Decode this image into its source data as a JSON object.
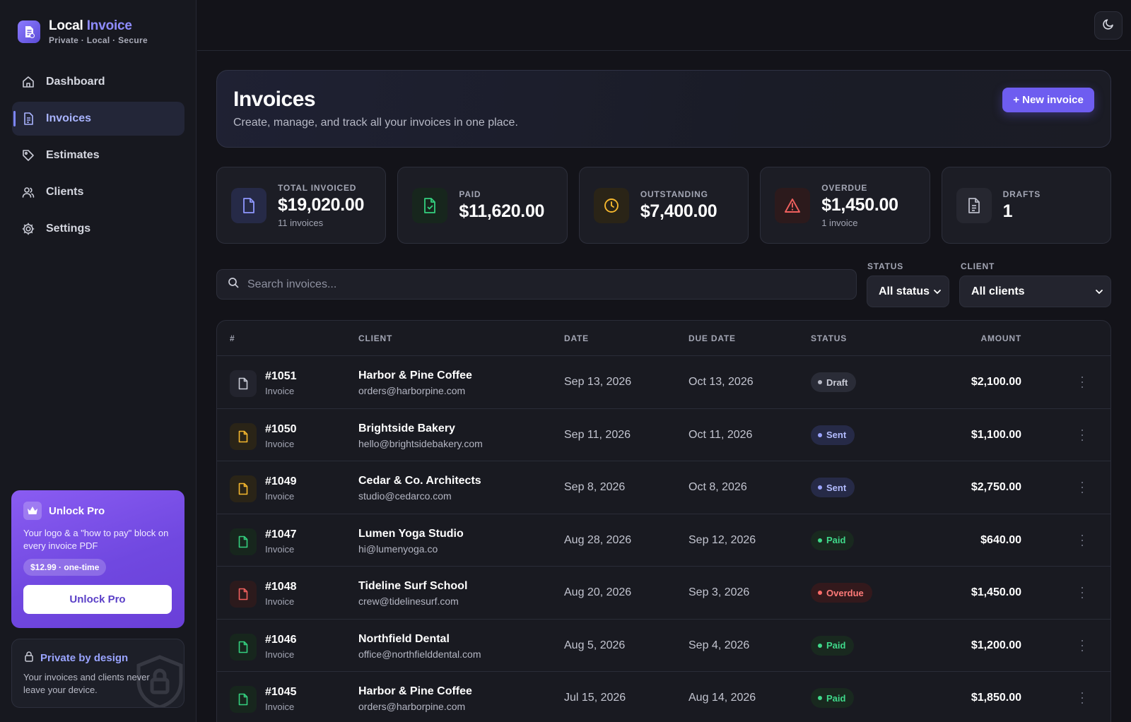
{
  "brand": {
    "name_part1": "Local",
    "name_part2": "Invoice",
    "tagline": "Private · Local · Secure"
  },
  "nav": [
    {
      "label": "Dashboard",
      "icon": "home-icon"
    },
    {
      "label": "Invoices",
      "icon": "invoice-doc-icon",
      "active": true
    },
    {
      "label": "Estimates",
      "icon": "tag-icon"
    },
    {
      "label": "Clients",
      "icon": "users-icon"
    },
    {
      "label": "Settings",
      "icon": "gear-icon"
    }
  ],
  "pro": {
    "title": "Unlock Pro",
    "description": "Your logo & a \"how to pay\" block on every invoice PDF",
    "price": "$12.99 · one-time",
    "button": "Unlock Pro",
    "icon": "crown-icon"
  },
  "privacy": {
    "title": "Private by design",
    "description": "Your invoices and clients never leave your device.",
    "icon": "lock-icon"
  },
  "topbar": {
    "theme_icon": "moon-icon"
  },
  "header": {
    "title": "Invoices",
    "subtitle": "Create, manage, and track all your invoices in one place.",
    "new_button": "+ New invoice"
  },
  "stats": [
    {
      "label": "TOTAL INVOICED",
      "value": "$19,020.00",
      "note": "11 invoices",
      "icon": "document-icon",
      "color": "#8f98ff"
    },
    {
      "label": "PAID",
      "value": "$11,620.00",
      "note": "",
      "icon": "document-check-icon",
      "color": "#34d07f"
    },
    {
      "label": "OUTSTANDING",
      "value": "$7,400.00",
      "note": "",
      "icon": "clock-icon",
      "color": "#f5b72e"
    },
    {
      "label": "OVERDUE",
      "value": "$1,450.00",
      "note": "1 invoice",
      "icon": "alert-triangle-icon",
      "color": "#f0605e"
    },
    {
      "label": "DRAFTS",
      "value": "1",
      "note": "",
      "icon": "document-lines-icon",
      "color": "#b8bac6"
    }
  ],
  "filters": {
    "search_placeholder": "Search invoices...",
    "status_label": "STATUS",
    "status_value": "All status",
    "client_label": "CLIENT",
    "client_value": "All clients"
  },
  "table": {
    "columns": [
      "#",
      "CLIENT",
      "DATE",
      "DUE DATE",
      "STATUS",
      "AMOUNT"
    ],
    "rows": [
      {
        "number": "#1051",
        "type": "Invoice",
        "client": "Harbor & Pine Coffee",
        "email": "orders@harborpine.com",
        "date": "Sep 13, 2026",
        "due": "Oct 13, 2026",
        "status": "Draft",
        "amount": "$2,100.00"
      },
      {
        "number": "#1050",
        "type": "Invoice",
        "client": "Brightside Bakery",
        "email": "hello@brightsidebakery.com",
        "date": "Sep 11, 2026",
        "due": "Oct 11, 2026",
        "status": "Sent",
        "amount": "$1,100.00"
      },
      {
        "number": "#1049",
        "type": "Invoice",
        "client": "Cedar & Co. Architects",
        "email": "studio@cedarco.com",
        "date": "Sep 8, 2026",
        "due": "Oct 8, 2026",
        "status": "Sent",
        "amount": "$2,750.00"
      },
      {
        "number": "#1047",
        "type": "Invoice",
        "client": "Lumen Yoga Studio",
        "email": "hi@lumenyoga.co",
        "date": "Aug 28, 2026",
        "due": "Sep 12, 2026",
        "status": "Paid",
        "amount": "$640.00"
      },
      {
        "number": "#1048",
        "type": "Invoice",
        "client": "Tideline Surf School",
        "email": "crew@tidelinesurf.com",
        "date": "Aug 20, 2026",
        "due": "Sep 3, 2026",
        "status": "Overdue",
        "amount": "$1,450.00"
      },
      {
        "number": "#1046",
        "type": "Invoice",
        "client": "Northfield Dental",
        "email": "office@northfielddental.com",
        "date": "Aug 5, 2026",
        "due": "Sep 4, 2026",
        "status": "Paid",
        "amount": "$1,200.00"
      },
      {
        "number": "#1045",
        "type": "Invoice",
        "client": "Harbor & Pine Coffee",
        "email": "orders@harborpine.com",
        "date": "Jul 15, 2026",
        "due": "Aug 14, 2026",
        "status": "Paid",
        "amount": "$1,850.00"
      }
    ]
  },
  "status_colors": {
    "Draft": {
      "text": "#c9cbd6",
      "bg": "#2a2c37",
      "dot": "#b8bac6",
      "doc": "#c9cbd6",
      "docbg": "#23242e"
    },
    "Sent": {
      "text": "#b3bcff",
      "bg": "#262a47",
      "dot": "#9aa4ff",
      "doc": "#f5b72e",
      "docbg": "#2a2417"
    },
    "Paid": {
      "text": "#3fd98a",
      "bg": "#19291f",
      "dot": "#3fd98a",
      "doc": "#34d07f",
      "docbg": "#17261d"
    },
    "Overdue": {
      "text": "#ff7a78",
      "bg": "#33191c",
      "dot": "#ff6b68",
      "doc": "#f0605e",
      "docbg": "#2c1a1c"
    }
  }
}
